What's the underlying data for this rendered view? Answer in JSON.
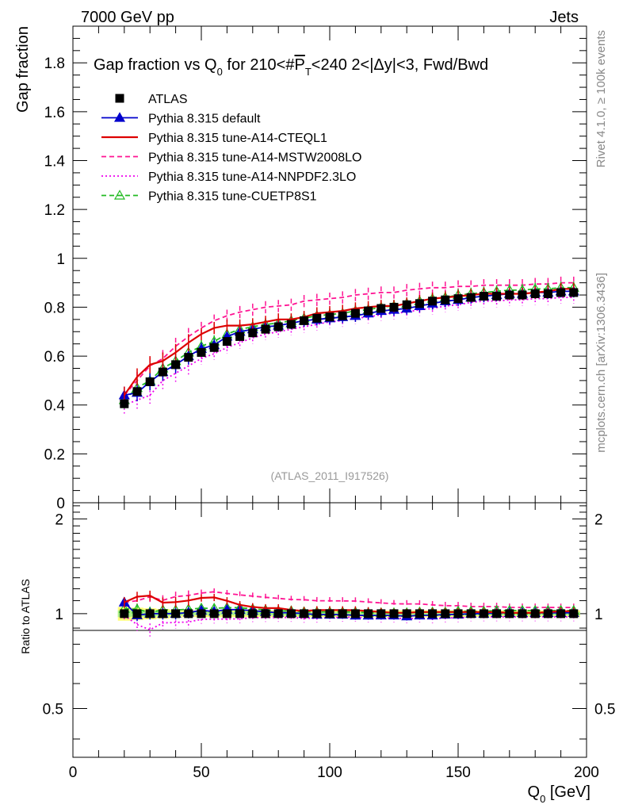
{
  "header": {
    "left": "7000 GeV pp",
    "right": "Jets"
  },
  "side_labels": {
    "rivet": "Rivet 4.1.0, ≥ 100k events",
    "mcplots": "mcplots.cern.ch [arXiv:1306.3436]"
  },
  "chart_data": {
    "type": "line",
    "title": "Gap fraction vs Q_0 for 210<#P_T<240  2<|Δy|<3, Fwd/Bwd",
    "title_parts": {
      "pre": "Gap fraction vs Q",
      "sub": "0",
      "mid": " for 210<#",
      "over": "P",
      "over_sub": "T",
      "post": "<240  2<|Δy|<3, Fwd/Bwd"
    },
    "analysis_id": "(ATLAS_2011_I917526)",
    "xlabel": "Q_0 [GeV]",
    "xlabel_parts": {
      "main": "Q",
      "sub": "0",
      "unit": " [GeV]"
    },
    "ylabel": "Gap fraction",
    "ratio_ylabel": "Ratio to ATLAS",
    "xlim": [
      0,
      200
    ],
    "ylim": [
      0,
      1.95
    ],
    "ratio_ylim": [
      0.35,
      2.25
    ],
    "x_ticks": [
      "0",
      "50",
      "100",
      "150",
      "200"
    ],
    "y_ticks": [
      "0",
      "0.2",
      "0.4",
      "0.6",
      "0.8",
      "1",
      "1.2",
      "1.4",
      "1.6",
      "1.8"
    ],
    "ratio_ticks": [
      "0.5",
      "1",
      "2"
    ],
    "x": [
      20,
      25,
      30,
      35,
      40,
      45,
      50,
      55,
      60,
      65,
      70,
      75,
      80,
      85,
      90,
      95,
      100,
      105,
      110,
      115,
      120,
      125,
      130,
      135,
      140,
      145,
      150,
      155,
      160,
      165,
      170,
      175,
      180,
      185,
      190,
      195
    ],
    "series": [
      {
        "name": "ATLAS",
        "color": "#000000",
        "style": "data",
        "values": [
          0.405,
          0.455,
          0.495,
          0.535,
          0.565,
          0.595,
          0.615,
          0.635,
          0.66,
          0.68,
          0.695,
          0.71,
          0.72,
          0.73,
          0.745,
          0.755,
          0.76,
          0.765,
          0.775,
          0.785,
          0.795,
          0.8,
          0.81,
          0.815,
          0.825,
          0.83,
          0.835,
          0.84,
          0.845,
          0.845,
          0.85,
          0.85,
          0.855,
          0.855,
          0.86,
          0.86
        ]
      },
      {
        "name": "Pythia 8.315 default",
        "color": "#0000cc",
        "style": "solid-triangle",
        "values": [
          0.44,
          0.45,
          0.495,
          0.535,
          0.565,
          0.6,
          0.63,
          0.645,
          0.68,
          0.7,
          0.71,
          0.72,
          0.725,
          0.735,
          0.745,
          0.75,
          0.755,
          0.76,
          0.765,
          0.775,
          0.785,
          0.79,
          0.795,
          0.805,
          0.815,
          0.825,
          0.83,
          0.84,
          0.845,
          0.85,
          0.855,
          0.855,
          0.86,
          0.86,
          0.865,
          0.865
        ]
      },
      {
        "name": "Pythia 8.315 tune-A14-CTEQL1",
        "color": "#dd0000",
        "style": "solid",
        "values": [
          0.44,
          0.515,
          0.565,
          0.58,
          0.615,
          0.655,
          0.69,
          0.715,
          0.725,
          0.725,
          0.73,
          0.74,
          0.75,
          0.75,
          0.76,
          0.775,
          0.78,
          0.785,
          0.795,
          0.8,
          0.805,
          0.805,
          0.815,
          0.825,
          0.835,
          0.84,
          0.845,
          0.85,
          0.855,
          0.855,
          0.855,
          0.855,
          0.86,
          0.865,
          0.875,
          0.875
        ]
      },
      {
        "name": "Pythia 8.315 tune-A14-MSTW2008LO",
        "color": "#ff1493",
        "style": "dashed",
        "values": [
          0.44,
          0.5,
          0.56,
          0.59,
          0.64,
          0.68,
          0.715,
          0.745,
          0.765,
          0.78,
          0.79,
          0.8,
          0.805,
          0.81,
          0.825,
          0.83,
          0.835,
          0.84,
          0.85,
          0.855,
          0.86,
          0.86,
          0.87,
          0.875,
          0.88,
          0.88,
          0.885,
          0.885,
          0.89,
          0.89,
          0.89,
          0.89,
          0.895,
          0.895,
          0.9,
          0.9
        ]
      },
      {
        "name": "Pythia 8.315 tune-A14-NNPDF2.3LO",
        "color": "#ee00ee",
        "style": "dotted",
        "values": [
          0.4,
          0.42,
          0.44,
          0.5,
          0.53,
          0.56,
          0.59,
          0.61,
          0.635,
          0.655,
          0.675,
          0.69,
          0.7,
          0.71,
          0.72,
          0.73,
          0.74,
          0.745,
          0.755,
          0.76,
          0.77,
          0.775,
          0.78,
          0.79,
          0.795,
          0.805,
          0.81,
          0.82,
          0.825,
          0.825,
          0.83,
          0.83,
          0.835,
          0.835,
          0.84,
          0.84
        ]
      },
      {
        "name": "Pythia 8.315 tune-CUETP8S1",
        "color": "#22bb22",
        "style": "dashed-triangle",
        "values": [
          0.42,
          0.47,
          0.5,
          0.55,
          0.58,
          0.615,
          0.64,
          0.66,
          0.69,
          0.71,
          0.72,
          0.73,
          0.735,
          0.745,
          0.755,
          0.765,
          0.77,
          0.775,
          0.785,
          0.79,
          0.8,
          0.805,
          0.815,
          0.825,
          0.835,
          0.84,
          0.85,
          0.855,
          0.86,
          0.865,
          0.87,
          0.87,
          0.875,
          0.875,
          0.88,
          0.88
        ]
      }
    ]
  }
}
